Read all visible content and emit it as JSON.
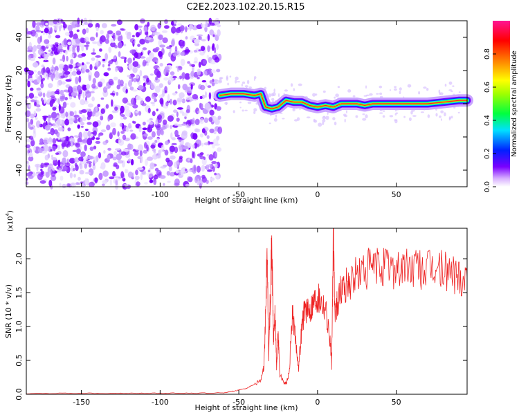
{
  "title": "C2E2.2023.102.20.15.R15",
  "colors": {
    "spectrum_low": "#7a00ff",
    "snr_line": "#ee2222",
    "axis": "#000000"
  },
  "chart_data": [
    {
      "type": "heatmap",
      "xlabel": "Height of straight line (km)",
      "ylabel": "Frequency (Hz)",
      "xlim": [
        -185,
        95
      ],
      "ylim": [
        -50,
        50
      ],
      "x_ticks": [
        -150,
        -100,
        -50,
        0,
        50
      ],
      "x_tick_labels": [
        "-150",
        "-100",
        "-50",
        "0",
        "50"
      ],
      "y_ticks": [
        -40,
        -20,
        0,
        20,
        40
      ],
      "y_tick_labels": [
        "-40",
        "-20",
        "0",
        "20",
        "40"
      ],
      "noise_region_xlim": [
        -185,
        -62
      ],
      "ridge_track": [
        {
          "x": -62,
          "y": 5
        },
        {
          "x": -55,
          "y": 6
        },
        {
          "x": -47,
          "y": 6
        },
        {
          "x": -40,
          "y": 5
        },
        {
          "x": -36,
          "y": 6
        },
        {
          "x": -33,
          "y": -2
        },
        {
          "x": -29,
          "y": -3
        },
        {
          "x": -25,
          "y": -2
        },
        {
          "x": -20,
          "y": 2
        },
        {
          "x": -15,
          "y": 1
        },
        {
          "x": -10,
          "y": 1
        },
        {
          "x": -5,
          "y": -1
        },
        {
          "x": 0,
          "y": -2
        },
        {
          "x": 5,
          "y": -1
        },
        {
          "x": 10,
          "y": -2
        },
        {
          "x": 15,
          "y": 0
        },
        {
          "x": 20,
          "y": 0
        },
        {
          "x": 25,
          "y": 0
        },
        {
          "x": 30,
          "y": -1
        },
        {
          "x": 35,
          "y": 0
        },
        {
          "x": 40,
          "y": 0
        },
        {
          "x": 50,
          "y": 0
        },
        {
          "x": 60,
          "y": 0
        },
        {
          "x": 70,
          "y": 0
        },
        {
          "x": 80,
          "y": 1
        },
        {
          "x": 90,
          "y": 2
        },
        {
          "x": 95,
          "y": 2
        }
      ],
      "colorbar": {
        "label": "Normalized spectral amplitude",
        "range": [
          0.0,
          1.0
        ],
        "ticks": [
          0.0,
          0.2,
          0.4,
          0.6,
          0.8
        ],
        "tick_labels": [
          "0.0",
          "0.2",
          "0.4",
          "0.6",
          "0.8"
        ],
        "colormap": "rainbow"
      }
    },
    {
      "type": "line",
      "xlabel": "Height of straight line (km)",
      "ylabel": "SNR (10 * v/v)",
      "scale_note": "(x10",
      "scale_exponent": "4",
      "scale_note_close": ")",
      "xlim": [
        -185,
        95
      ],
      "ylim": [
        0,
        24500
      ],
      "x_ticks": [
        -150,
        -100,
        -50,
        0,
        50
      ],
      "x_tick_labels": [
        "-150",
        "-100",
        "-50",
        "0",
        "50"
      ],
      "y_ticks": [
        0,
        5000,
        10000,
        15000,
        20000
      ],
      "y_tick_labels": [
        "0.0",
        "0.5",
        "1.0",
        "1.5",
        "2.0"
      ],
      "series": [
        {
          "x": [
            -185,
            -160,
            -140,
            -120,
            -100,
            -80,
            -60,
            -55,
            -50,
            -45,
            -40,
            -36,
            -34,
            -33,
            -32,
            -31,
            -30,
            -29,
            -28,
            -27,
            -26,
            -25,
            -24,
            -22,
            -20,
            -18,
            -16,
            -14,
            -12,
            -10,
            -8,
            -6,
            -4,
            -2,
            0,
            2,
            5,
            8,
            9,
            10,
            11,
            13,
            16,
            20,
            25,
            30,
            35,
            40,
            45,
            50,
            55,
            60,
            65,
            70,
            75,
            80,
            85,
            90,
            95
          ],
          "y": [
            100,
            150,
            150,
            150,
            150,
            150,
            200,
            400,
            600,
            900,
            1500,
            2000,
            4000,
            12000,
            21000,
            5000,
            15000,
            22000,
            8000,
            12000,
            4000,
            9000,
            3000,
            2000,
            1500,
            3000,
            12000,
            8000,
            4000,
            10000,
            13000,
            12000,
            13000,
            14000,
            14500,
            14000,
            13000,
            8000,
            4000,
            24500,
            12000,
            14000,
            16000,
            16500,
            17500,
            18200,
            18600,
            18800,
            18700,
            18700,
            18500,
            18600,
            18400,
            18200,
            18500,
            18200,
            18000,
            17500,
            17200
          ]
        }
      ]
    }
  ]
}
